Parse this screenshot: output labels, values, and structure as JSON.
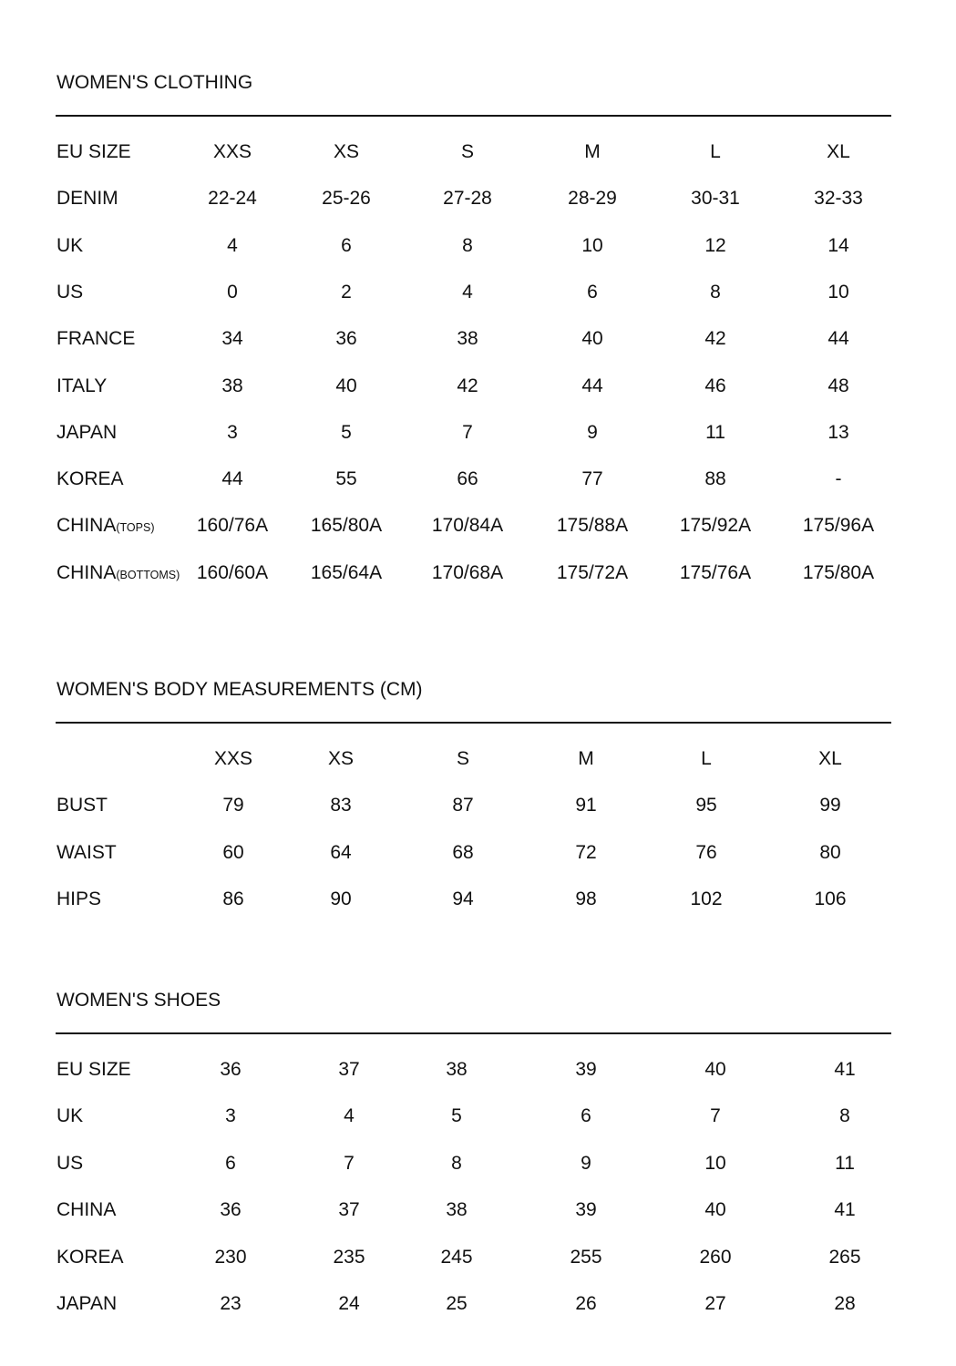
{
  "sections": [
    {
      "title": "WOMEN'S CLOTHING",
      "rows": [
        {
          "label": "EU SIZE",
          "values": [
            "XXS",
            "XS",
            "S",
            "M",
            "L",
            "XL"
          ]
        },
        {
          "label": "DENIM",
          "values": [
            "22-24",
            "25-26",
            "27-28",
            "28-29",
            "30-31",
            "32-33"
          ]
        },
        {
          "label": "UK",
          "values": [
            "4",
            "6",
            "8",
            "10",
            "12",
            "14"
          ]
        },
        {
          "label": "US",
          "values": [
            "0",
            "2",
            "4",
            "6",
            "8",
            "10"
          ]
        },
        {
          "label": "FRANCE",
          "values": [
            "34",
            "36",
            "38",
            "40",
            "42",
            "44"
          ]
        },
        {
          "label": "ITALY",
          "values": [
            "38",
            "40",
            "42",
            "44",
            "46",
            "48"
          ]
        },
        {
          "label": "JAPAN",
          "values": [
            "3",
            "5",
            "7",
            "9",
            "11",
            "13"
          ]
        },
        {
          "label": "KOREA",
          "values": [
            "44",
            "55",
            "66",
            "77",
            "88",
            "-"
          ]
        },
        {
          "label": "CHINA",
          "sub": "(TOPS)",
          "values": [
            "160/76A",
            "165/80A",
            "170/84A",
            "175/88A",
            "175/92A",
            "175/96A"
          ]
        },
        {
          "label": "CHINA",
          "sub": "(BOTTOMS)",
          "values": [
            "160/60A",
            "165/64A",
            "170/68A",
            "175/72A",
            "175/76A",
            "175/80A"
          ]
        }
      ]
    },
    {
      "title": "WOMEN'S BODY MEASUREMENTS (CM)",
      "rows": [
        {
          "label": "",
          "values": [
            "XXS",
            "XS",
            "S",
            "M",
            "L",
            "XL"
          ]
        },
        {
          "label": "BUST",
          "values": [
            "79",
            "83",
            "87",
            "91",
            "95",
            "99"
          ]
        },
        {
          "label": "WAIST",
          "values": [
            "60",
            "64",
            "68",
            "72",
            "76",
            "80"
          ]
        },
        {
          "label": "HIPS",
          "values": [
            "86",
            "90",
            "94",
            "98",
            "102",
            "106"
          ]
        }
      ]
    },
    {
      "title": "WOMEN'S SHOES",
      "rows": [
        {
          "label": "EU SIZE",
          "values": [
            "36",
            "37",
            "38",
            "39",
            "40",
            "41"
          ]
        },
        {
          "label": "UK",
          "values": [
            "3",
            "4",
            "5",
            "6",
            "7",
            "8"
          ]
        },
        {
          "label": "US",
          "values": [
            "6",
            "7",
            "8",
            "9",
            "10",
            "11"
          ]
        },
        {
          "label": "CHINA",
          "values": [
            "36",
            "37",
            "38",
            "39",
            "40",
            "41"
          ]
        },
        {
          "label": "KOREA",
          "values": [
            "230",
            "235",
            "245",
            "255",
            "260",
            "265"
          ]
        },
        {
          "label": "JAPAN",
          "values": [
            "23",
            "24",
            "25",
            "26",
            "27",
            "28"
          ]
        }
      ]
    }
  ]
}
